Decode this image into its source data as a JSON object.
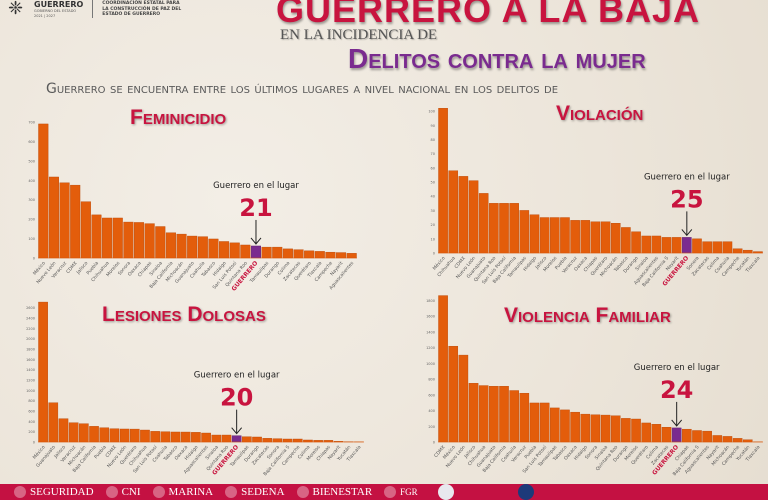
{
  "header": {
    "logo_name": "GUERRERO",
    "logo_sub": "GOBIERNO DEL ESTADO",
    "logo_years": "2021 | 2027",
    "logo_right": "COORDINACIÓN ESTATAL PARA LA CONSTRUCCIÓN DE PAZ DEL ESTADO DE GUERRERO",
    "title": "GUERRERO A LA BAJA",
    "pre_subtitle": "EN LA INCIDENCIA DE",
    "subtitle": "Delitos contra la mujer",
    "lead": "Guerrero se encuentra entre los últimos lugares a nivel nacional en los delitos de"
  },
  "colors": {
    "bar": "#e35d0b",
    "highlight": "#7a2b8f",
    "title": "#c8143f",
    "purple": "#7a2b8f",
    "footer": "#c41142"
  },
  "chart_data": [
    {
      "type": "bar",
      "title": "Feminicidio",
      "annotation_label": "Guerrero en el lugar",
      "rank": "21",
      "highlight": "GUERRERO",
      "ylim": [
        0,
        700
      ],
      "yticks": [
        0,
        100,
        200,
        300,
        400,
        500,
        600,
        700
      ],
      "categories": [
        "México",
        "Nuevo León",
        "Veracruz",
        "CDMX",
        "Jalisco",
        "Puebla",
        "Chihuahua",
        "Morelos",
        "Sonora",
        "Oaxaca",
        "Chiapas",
        "Sinaloa",
        "Baja California",
        "Michoacán",
        "Guanajuato",
        "Coahuila",
        "Tabasco",
        "Hidalgo",
        "San Luis Potosí",
        "Quintana Roo",
        "GUERRERO",
        "Tamaulipas",
        "Durango",
        "Colima",
        "Zacatecas",
        "Querétaro",
        "Tlaxcala",
        "Campeche",
        "Nayarit",
        "Aguascalientes"
      ],
      "values": [
        690,
        417,
        387,
        375,
        290,
        222,
        206,
        206,
        185,
        183,
        177,
        162,
        130,
        123,
        113,
        110,
        98,
        85,
        78,
        67,
        62,
        56,
        56,
        47,
        43,
        37,
        34,
        30,
        28,
        24
      ]
    },
    {
      "type": "bar",
      "title": "Violación",
      "annotation_label": "Guerrero en el lugar",
      "rank": "25",
      "highlight": "GUERRERO",
      "ylim": [
        0,
        105
      ],
      "yticks": [
        0,
        10,
        20,
        30,
        40,
        50,
        60,
        70,
        80,
        90,
        100
      ],
      "categories": [
        "México",
        "Chihuahua",
        "CDMX",
        "Nuevo León",
        "Guanajuato",
        "Quintana Roo",
        "San Luis Potosí",
        "Baja California",
        "Tamaulipas",
        "Hidalgo",
        "Jalisco",
        "Morelos",
        "Puebla",
        "Veracruz",
        "Oaxaca",
        "Chiapas",
        "Querétaro",
        "Michoacán",
        "Tabasco",
        "Durango",
        "Sinaloa",
        "Aguascalientes",
        "Baja California S",
        "Nayarit",
        "GUERRERO",
        "Sonora",
        "Zacatecas",
        "Colima",
        "Coahuila",
        "Campeche",
        "Yucatán",
        "Tlaxcala"
      ],
      "values": [
        102,
        58,
        54,
        51,
        42,
        35,
        35,
        35,
        30,
        27,
        25,
        25,
        25,
        23,
        23,
        22,
        22,
        21,
        18,
        15,
        12,
        12,
        11,
        11,
        11,
        10,
        8,
        8,
        8,
        3,
        2,
        1
      ]
    },
    {
      "type": "bar",
      "title": "Lesiones Dolosas",
      "annotation_label": "Guerrero en el lugar",
      "rank": "20",
      "highlight": "GUERRERO",
      "ylim": [
        0,
        2750
      ],
      "yticks": [
        0,
        200,
        400,
        600,
        800,
        1000,
        1200,
        1400,
        1600,
        1800,
        2000,
        2200,
        2400,
        2600
      ],
      "categories": [
        "México",
        "Guanajuato",
        "Jalisco",
        "Veracruz",
        "Michoacán",
        "Baja California",
        "Puebla",
        "CDMX",
        "Nuevo León",
        "Querétaro",
        "Chihuahua",
        "San Luis Potosí",
        "Coahuila",
        "Tabasco",
        "Oaxaca",
        "Hidalgo",
        "Aguascalientes",
        "Sinaloa",
        "Quintana Roo",
        "GUERRERO",
        "Tamaulipas",
        "Durango",
        "Zacatecas",
        "Sonora",
        "Baja California S",
        "Campeche",
        "Colima",
        "Morelos",
        "Chiapas",
        "Nayarit",
        "Yucatán",
        "Tlaxcala"
      ],
      "values": [
        2710,
        761,
        452,
        374,
        355,
        303,
        277,
        258,
        252,
        250,
        232,
        206,
        200,
        194,
        193,
        187,
        174,
        135,
        135,
        123,
        103,
        97,
        71,
        65,
        58,
        58,
        39,
        32,
        32,
        13,
        5,
        3
      ]
    },
    {
      "type": "bar",
      "title": "Violencia Familiar",
      "annotation_label": "Guerrero en el lugar",
      "rank": "24",
      "highlight": "GUERRERO",
      "ylim": [
        0,
        1880
      ],
      "yticks": [
        0,
        200,
        400,
        600,
        800,
        1000,
        1200,
        1400,
        1600,
        1800
      ],
      "categories": [
        "CDMX",
        "México",
        "Nuevo León",
        "Jalisco",
        "Chihuahua",
        "Guanajuato",
        "Baja California",
        "Coahuila",
        "Veracruz",
        "Puebla",
        "San Luis Potosí",
        "Tamaulipas",
        "Tabasco",
        "Oaxaca",
        "Hidalgo",
        "Sonora",
        "Sinaloa",
        "Quintana Roo",
        "Durango",
        "Morelos",
        "Querétaro",
        "Colima",
        "Zacatecas",
        "GUERRERO",
        "Chiapas",
        "Baja California S",
        "Aguascalientes",
        "Nayarit",
        "Michoacán",
        "Campeche",
        "Yucatán",
        "Tlaxcala"
      ],
      "values": [
        1860,
        1217,
        1104,
        746,
        717,
        708,
        708,
        654,
        620,
        496,
        496,
        433,
        408,
        379,
        354,
        346,
        342,
        333,
        300,
        292,
        242,
        225,
        188,
        179,
        163,
        146,
        138,
        83,
        71,
        46,
        29,
        2
      ]
    }
  ],
  "footer": {
    "items": [
      "SEGURIDAD",
      "CNI",
      "MARINA",
      "SEDENA",
      "BIENESTAR",
      "FGR"
    ]
  }
}
